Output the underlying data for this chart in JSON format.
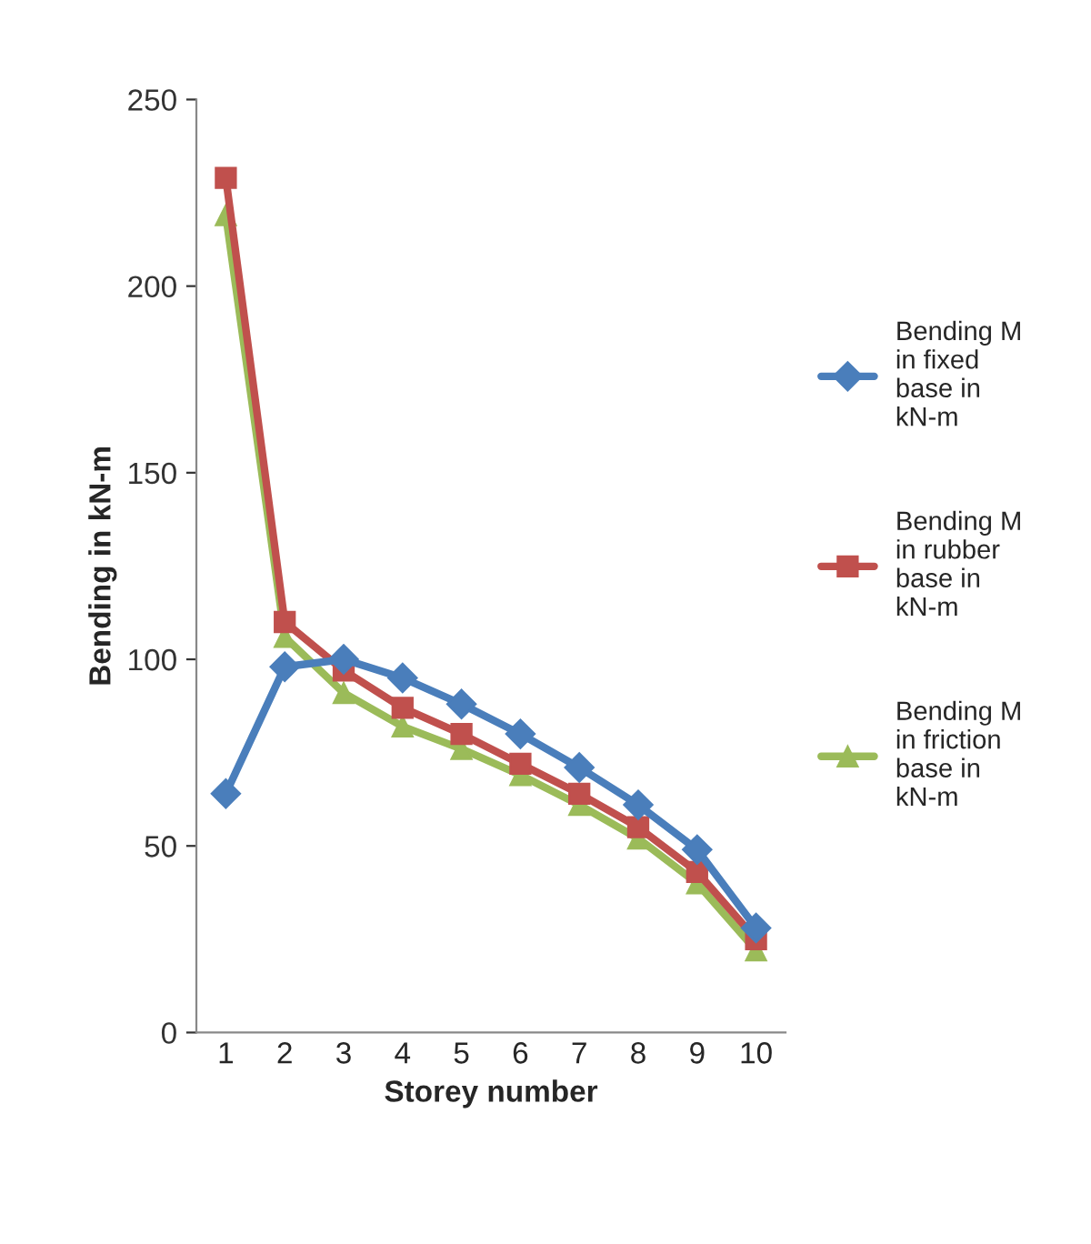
{
  "chart_data": {
    "type": "line",
    "xlabel": "Storey number",
    "ylabel": "Bending in kN-m",
    "categories": [
      "1",
      "2",
      "3",
      "4",
      "5",
      "6",
      "7",
      "8",
      "9",
      "10"
    ],
    "series": [
      {
        "name": "Bending M in fixed base in kN-m",
        "color": "#4a7ebb",
        "marker": "diamond",
        "values": [
          64,
          98,
          100,
          95,
          88,
          80,
          71,
          61,
          49,
          28
        ]
      },
      {
        "name": "Bending M in rubber base in kN-m",
        "color": "#c0504d",
        "marker": "square",
        "values": [
          229,
          110,
          97,
          87,
          80,
          72,
          64,
          55,
          43,
          25
        ]
      },
      {
        "name": "Bending M in friction base in kN-m",
        "color": "#9bbb59",
        "marker": "triangle",
        "values": [
          219,
          106,
          91,
          82,
          76,
          69,
          61,
          52,
          40,
          22
        ]
      }
    ],
    "ylim": [
      0,
      250
    ],
    "yticks": [
      0,
      50,
      100,
      150,
      200,
      250
    ],
    "grid": false,
    "legend": "right",
    "line_style": "solid"
  }
}
